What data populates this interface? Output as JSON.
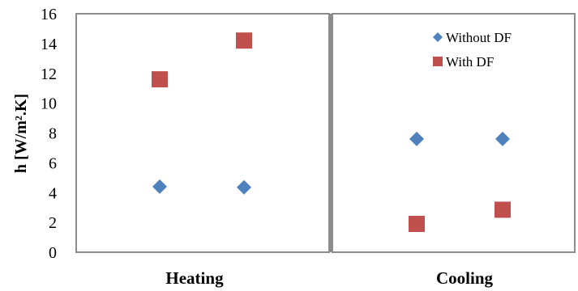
{
  "chart_data": {
    "type": "scatter",
    "ylabel": "h [W/m².K]",
    "ylim": [
      0,
      16
    ],
    "yticks": [
      0,
      2,
      4,
      6,
      8,
      10,
      12,
      14,
      16
    ],
    "grid": false,
    "legend": "top-right",
    "panels": [
      {
        "label": "Heating",
        "x": [
          1,
          2
        ]
      },
      {
        "label": "Cooling",
        "x": [
          1,
          2
        ]
      }
    ],
    "series": [
      {
        "name": "Without DF",
        "marker": "diamond",
        "color": "#4F81BD",
        "points": [
          {
            "panel": "Heating",
            "x": 1,
            "y": 4.4
          },
          {
            "panel": "Heating",
            "x": 2,
            "y": 4.35
          },
          {
            "panel": "Cooling",
            "x": 1,
            "y": 7.6
          },
          {
            "panel": "Cooling",
            "x": 2,
            "y": 7.6
          }
        ]
      },
      {
        "name": "With DF",
        "marker": "square",
        "color": "#C0504D",
        "points": [
          {
            "panel": "Heating",
            "x": 1,
            "y": 11.6
          },
          {
            "panel": "Heating",
            "x": 2,
            "y": 14.2
          },
          {
            "panel": "Cooling",
            "x": 1,
            "y": 1.9
          },
          {
            "panel": "Cooling",
            "x": 2,
            "y": 2.85
          }
        ]
      }
    ]
  }
}
